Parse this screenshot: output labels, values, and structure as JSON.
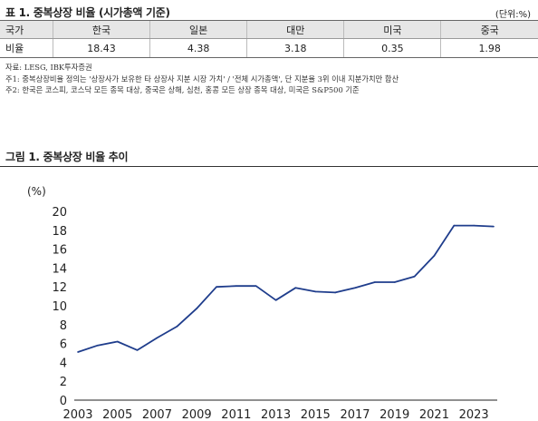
{
  "table": {
    "title": "표 1. 중복상장 비율 (시가총액 기준)",
    "unit": "(단위:%)",
    "header": [
      "국가",
      "한국",
      "일본",
      "대만",
      "미국",
      "중국"
    ],
    "row": [
      "비율",
      "18.43",
      "4.38",
      "3.18",
      "0.35",
      "1.98"
    ]
  },
  "notes": [
    "자료: LESG, IBK투자증권",
    "주1: 중복상장비율 정의는 '상장사가 보유한 타 상장사 지분 시장 가치' / '전체 시가총액', 단 지분율 3위 이내 지분가치만 합산",
    "주2: 한국은 코스피, 코스닥 모든 종목 대상, 중국은 상해, 심천, 홍콩 모든 상장 종목 대상, 미국은 S&P500 기준"
  ],
  "figure": {
    "title": "그림 1. 중복상장 비율 추이"
  },
  "chart_data": {
    "type": "line",
    "title": "그림 1. 중복상장 비율 추이",
    "ylabel": "(%)",
    "xlabel": "",
    "ylim": [
      0,
      20
    ],
    "yticks": [
      0,
      2,
      4,
      6,
      8,
      10,
      12,
      14,
      16,
      18,
      20
    ],
    "xticks": [
      "2003",
      "2005",
      "2007",
      "2009",
      "2011",
      "2013",
      "2015",
      "2017",
      "2019",
      "2021",
      "2023"
    ],
    "x": [
      2003,
      2004,
      2005,
      2006,
      2007,
      2008,
      2009,
      2010,
      2011,
      2012,
      2013,
      2014,
      2015,
      2016,
      2017,
      2018,
      2019,
      2020,
      2021,
      2022,
      2023,
      2024
    ],
    "series": [
      {
        "values": [
          5.1,
          5.8,
          6.2,
          5.3,
          6.6,
          7.8,
          9.7,
          12.0,
          12.1,
          12.1,
          10.6,
          11.9,
          11.5,
          11.4,
          11.9,
          12.5,
          12.5,
          13.1,
          15.3,
          18.5,
          18.5,
          18.4
        ],
        "color": "#1f3d8c"
      }
    ],
    "grid": false,
    "legend": "none"
  }
}
